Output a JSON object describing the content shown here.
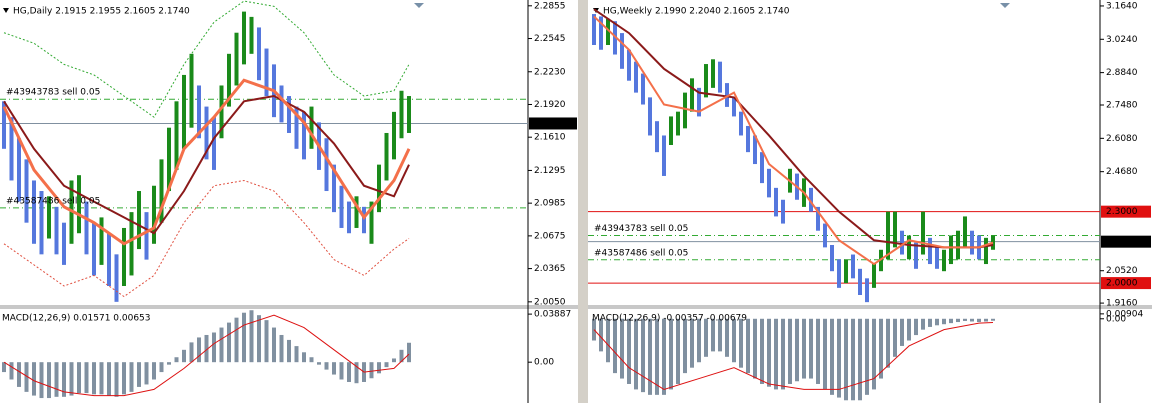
{
  "chart_data": [
    {
      "type": "ohlc",
      "title": "HG,Daily  2.1915 2.1955 2.1605 2.1740",
      "ylim": [
        2.002,
        2.291
      ],
      "yticks": [
        2.2855,
        2.2545,
        {
          "value": 2.223,
          "label": "2.2230"
        },
        {
          "value": 2.192,
          "label": "2.1920"
        },
        {
          "value": 2.161,
          "label": "2.1610"
        },
        2.1295,
        2.0985,
        2.0675,
        2.0365,
        {
          "value": 2.005,
          "label": "2.0050"
        }
      ],
      "up_color": "#1a8a1a",
      "down_color": "#5577dd",
      "bars": {
        "low": [
          2.15,
          2.12,
          2.1,
          2.08,
          2.06,
          2.05,
          2.065,
          2.05,
          2.04,
          2.06,
          2.07,
          2.05,
          2.03,
          2.04,
          2.02,
          2.005,
          2.02,
          2.03,
          2.055,
          2.045,
          2.06,
          2.08,
          2.11,
          2.13,
          2.15,
          2.17,
          2.16,
          2.14,
          2.13,
          2.16,
          2.19,
          2.21,
          2.23,
          2.24,
          2.215,
          2.2,
          2.18,
          2.175,
          2.165,
          2.15,
          2.14,
          2.15,
          2.13,
          2.11,
          2.09,
          2.075,
          2.07,
          2.075,
          2.07,
          2.06,
          2.09,
          2.12,
          2.14,
          2.16,
          2.165
        ],
        "high": [
          2.195,
          2.18,
          2.16,
          2.14,
          2.12,
          2.11,
          2.105,
          2.095,
          2.08,
          2.12,
          2.125,
          2.1,
          2.08,
          2.085,
          2.07,
          2.05,
          2.075,
          2.09,
          2.11,
          2.09,
          2.115,
          2.14,
          2.17,
          2.195,
          2.22,
          2.24,
          2.21,
          2.19,
          2.18,
          2.21,
          2.24,
          2.26,
          2.28,
          2.275,
          2.265,
          2.245,
          2.23,
          2.21,
          2.2,
          2.19,
          2.185,
          2.19,
          2.175,
          2.16,
          2.135,
          2.115,
          2.1,
          2.105,
          2.095,
          2.1,
          2.135,
          2.165,
          2.185,
          2.205,
          2.2
        ],
        "direction": [
          "down",
          "down",
          "down",
          "down",
          "down",
          "down",
          "up",
          "down",
          "down",
          "up",
          "up",
          "down",
          "down",
          "up",
          "down",
          "down",
          "up",
          "up",
          "up",
          "down",
          "up",
          "up",
          "up",
          "up",
          "up",
          "up",
          "down",
          "down",
          "down",
          "up",
          "up",
          "up",
          "up",
          "up",
          "down",
          "down",
          "down",
          "down",
          "down",
          "down",
          "down",
          "up",
          "down",
          "down",
          "down",
          "down",
          "down",
          "up",
          "down",
          "up",
          "up",
          "up",
          "up",
          "up",
          "up"
        ]
      },
      "lines": [
        {
          "color": "#33aa33",
          "style": "dotted",
          "width": 1,
          "x": [
            0,
            4,
            8,
            12,
            16,
            20,
            24,
            28,
            32,
            36,
            40,
            44,
            48,
            52,
            54
          ],
          "values": [
            2.26,
            2.25,
            2.23,
            2.22,
            2.2,
            2.18,
            2.23,
            2.27,
            2.29,
            2.285,
            2.26,
            2.22,
            2.2,
            2.205,
            2.23
          ]
        },
        {
          "color": "#e05040",
          "style": "dotted",
          "width": 1,
          "x": [
            0,
            4,
            8,
            12,
            16,
            20,
            24,
            28,
            32,
            36,
            40,
            44,
            48,
            52,
            54
          ],
          "values": [
            2.06,
            2.04,
            2.02,
            2.03,
            2.01,
            2.03,
            2.08,
            2.115,
            2.12,
            2.11,
            2.08,
            2.045,
            2.03,
            2.055,
            2.065
          ]
        },
        {
          "color": "#8b1a1a",
          "style": "solid",
          "width": 2,
          "x": [
            0,
            4,
            8,
            12,
            16,
            20,
            24,
            28,
            32,
            36,
            40,
            44,
            48,
            52,
            54
          ],
          "values": [
            2.195,
            2.15,
            2.115,
            2.1,
            2.085,
            2.07,
            2.11,
            2.16,
            2.195,
            2.2,
            2.185,
            2.155,
            2.115,
            2.105,
            2.135
          ]
        },
        {
          "color": "#f4704a",
          "style": "solid",
          "width": 3,
          "x": [
            0,
            4,
            8,
            12,
            16,
            20,
            24,
            28,
            32,
            36,
            40,
            44,
            48,
            52,
            54
          ],
          "values": [
            2.19,
            2.13,
            2.095,
            2.08,
            2.06,
            2.075,
            2.15,
            2.18,
            2.215,
            2.205,
            2.175,
            2.13,
            2.085,
            2.12,
            2.15
          ]
        }
      ],
      "hlines": [
        {
          "value": 2.197,
          "label": "#43943783 sell 0.05",
          "color": "#33aa33",
          "style": "dashdot"
        },
        {
          "value": 2.094,
          "label": "#43587486 sell 0.05",
          "color": "#33aa33",
          "style": "dashdot"
        }
      ],
      "price": {
        "value": 2.174,
        "label": "2.1740"
      },
      "macd": {
        "title": "MACD(12,26,9) 0.01571 0.00653",
        "ylim": [
          -0.033,
          0.043
        ],
        "yticks": [
          0.03887,
          {
            "value": 0,
            "label": "0.00"
          }
        ],
        "color": "#8090a0",
        "histogram": [
          -0.008,
          -0.014,
          -0.02,
          -0.024,
          -0.027,
          -0.029,
          -0.029,
          -0.028,
          -0.028,
          -0.027,
          -0.025,
          -0.025,
          -0.026,
          -0.026,
          -0.027,
          -0.028,
          -0.026,
          -0.024,
          -0.02,
          -0.018,
          -0.014,
          -0.008,
          -0.002,
          0.004,
          0.01,
          0.016,
          0.02,
          0.022,
          0.024,
          0.028,
          0.032,
          0.036,
          0.04,
          0.042,
          0.038,
          0.034,
          0.028,
          0.022,
          0.018,
          0.013,
          0.008,
          0.004,
          -0.002,
          -0.006,
          -0.01,
          -0.014,
          -0.016,
          -0.017,
          -0.016,
          -0.013,
          -0.009,
          -0.004,
          0.003,
          0.01,
          0.0157
        ],
        "signal": {
          "color": "#dd1111",
          "x": [
            0,
            4,
            8,
            12,
            16,
            20,
            24,
            28,
            32,
            36,
            40,
            44,
            48,
            52,
            54
          ],
          "values": [
            0.0,
            -0.015,
            -0.024,
            -0.027,
            -0.027,
            -0.022,
            -0.005,
            0.015,
            0.03,
            0.038,
            0.028,
            0.01,
            -0.008,
            -0.005,
            0.0065
          ]
        }
      }
    },
    {
      "type": "ohlc",
      "title": "HG,Weekly  2.1990 2.2040 2.1605 2.1740",
      "ylim": [
        1.908,
        3.189
      ],
      "yticks": [
        {
          "value": 3.164,
          "label": "3.1640"
        },
        {
          "value": 3.024,
          "label": "3.0240"
        },
        {
          "value": 2.884,
          "label": "2.8840"
        },
        {
          "value": 2.748,
          "label": "2.7480"
        },
        {
          "value": 2.608,
          "label": "2.6080"
        },
        {
          "value": 2.468,
          "label": "2.4680"
        },
        {
          "value": 2.052,
          "label": "2.0520"
        },
        {
          "value": 1.916,
          "label": "1.9160"
        }
      ],
      "up_color": "#1a8a1a",
      "down_color": "#5577dd",
      "bars": {
        "low": [
          3.0,
          2.98,
          3.0,
          2.96,
          2.9,
          2.85,
          2.8,
          2.75,
          2.62,
          2.55,
          2.45,
          2.58,
          2.62,
          2.65,
          2.72,
          2.7,
          2.78,
          2.82,
          2.8,
          2.74,
          2.7,
          2.62,
          2.55,
          2.5,
          2.42,
          2.36,
          2.28,
          2.25,
          2.38,
          2.35,
          2.32,
          2.3,
          2.22,
          2.15,
          2.05,
          1.98,
          2.0,
          2.02,
          1.95,
          1.92,
          1.98,
          2.05,
          2.1,
          2.15,
          2.12,
          2.1,
          2.06,
          2.12,
          2.08,
          2.06,
          2.05,
          2.08,
          2.1,
          2.15,
          2.12,
          2.1,
          2.08,
          2.14
        ],
        "high": [
          3.13,
          3.12,
          3.11,
          3.1,
          3.05,
          2.98,
          2.93,
          2.88,
          2.78,
          2.68,
          2.62,
          2.7,
          2.72,
          2.8,
          2.86,
          2.82,
          2.92,
          2.94,
          2.93,
          2.84,
          2.78,
          2.72,
          2.66,
          2.62,
          2.55,
          2.48,
          2.4,
          2.35,
          2.48,
          2.46,
          2.44,
          2.4,
          2.32,
          2.25,
          2.16,
          2.1,
          2.1,
          2.12,
          2.06,
          2.02,
          2.08,
          2.14,
          2.3,
          2.3,
          2.22,
          2.2,
          2.17,
          2.3,
          2.19,
          2.15,
          2.14,
          2.2,
          2.22,
          2.28,
          2.22,
          2.2,
          2.19,
          2.2
        ],
        "direction": [
          "down",
          "down",
          "up",
          "down",
          "down",
          "down",
          "down",
          "down",
          "down",
          "down",
          "down",
          "up",
          "up",
          "up",
          "up",
          "down",
          "up",
          "up",
          "down",
          "down",
          "down",
          "down",
          "down",
          "down",
          "down",
          "down",
          "down",
          "down",
          "up",
          "down",
          "up",
          "down",
          "down",
          "down",
          "down",
          "down",
          "up",
          "down",
          "down",
          "down",
          "up",
          "up",
          "up",
          "up",
          "down",
          "up",
          "down",
          "up",
          "down",
          "down",
          "up",
          "up",
          "up",
          "up",
          "down",
          "down",
          "up",
          "up"
        ]
      },
      "lines": [
        {
          "color": "#8b1a1a",
          "style": "solid",
          "width": 2,
          "x": [
            0,
            5,
            10,
            15,
            20,
            25,
            30,
            35,
            40,
            45,
            50,
            55,
            57
          ],
          "values": [
            3.15,
            3.05,
            2.9,
            2.8,
            2.78,
            2.62,
            2.45,
            2.3,
            2.18,
            2.16,
            2.15,
            2.15,
            2.16
          ]
        },
        {
          "color": "#f4704a",
          "style": "solid",
          "width": 2,
          "x": [
            0,
            5,
            10,
            15,
            20,
            25,
            30,
            35,
            40,
            45,
            50,
            55,
            57
          ],
          "values": [
            3.12,
            2.98,
            2.75,
            2.72,
            2.8,
            2.5,
            2.38,
            2.18,
            2.08,
            2.18,
            2.15,
            2.15,
            2.17
          ]
        }
      ],
      "hlines": [
        {
          "value": 2.3,
          "label": "2.3000",
          "color": "#e01010",
          "style": "solid",
          "tag": true
        },
        {
          "value": 2.0,
          "label": "2.0000",
          "color": "#e01010",
          "style": "solid",
          "tag": true
        },
        {
          "value": 2.2,
          "label": "#43943783 sell 0.05",
          "color": "#33aa33",
          "style": "dashdot"
        },
        {
          "value": 2.098,
          "label": "#43587486 sell 0.05",
          "color": "#33aa33",
          "style": "dashdot"
        }
      ],
      "price": {
        "value": 2.174,
        "label": "2.1740"
      },
      "macd": {
        "title": "MACD(12,26,9) -0.00357 -0.00679",
        "ylim": [
          -0.155,
          0.018
        ],
        "yticks": [
          0.00904,
          {
            "value": 0,
            "label": "0.00"
          }
        ],
        "color": "#8090a0",
        "histogram": [
          -0.04,
          -0.06,
          -0.08,
          -0.1,
          -0.11,
          -0.12,
          -0.13,
          -0.135,
          -0.14,
          -0.14,
          -0.14,
          -0.13,
          -0.12,
          -0.1,
          -0.09,
          -0.08,
          -0.07,
          -0.06,
          -0.06,
          -0.07,
          -0.08,
          -0.09,
          -0.1,
          -0.11,
          -0.12,
          -0.125,
          -0.13,
          -0.13,
          -0.12,
          -0.115,
          -0.11,
          -0.11,
          -0.12,
          -0.13,
          -0.14,
          -0.145,
          -0.15,
          -0.15,
          -0.15,
          -0.14,
          -0.13,
          -0.11,
          -0.09,
          -0.07,
          -0.05,
          -0.04,
          -0.03,
          -0.02,
          -0.015,
          -0.012,
          -0.01,
          -0.008,
          -0.006,
          -0.004,
          -0.005,
          -0.006,
          -0.005,
          -0.00357
        ],
        "signal": {
          "color": "#dd1111",
          "x": [
            0,
            5,
            10,
            15,
            20,
            25,
            30,
            35,
            40,
            45,
            50,
            55,
            57
          ],
          "values": [
            -0.02,
            -0.09,
            -0.13,
            -0.11,
            -0.09,
            -0.12,
            -0.13,
            -0.13,
            -0.11,
            -0.05,
            -0.02,
            -0.008,
            -0.00679
          ]
        }
      }
    }
  ]
}
